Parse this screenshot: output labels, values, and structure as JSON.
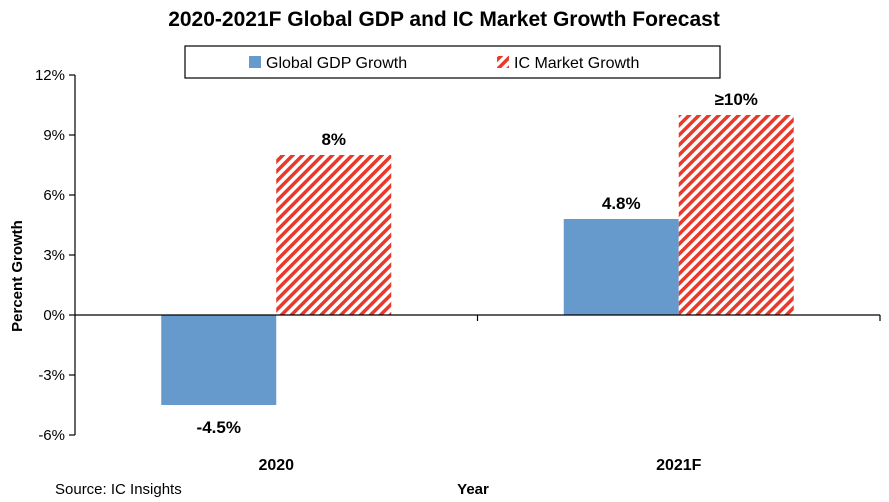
{
  "chart_data": {
    "type": "bar",
    "title": "2020-2021F Global GDP and IC Market Growth Forecast",
    "xlabel": "Year",
    "ylabel": "Percent Growth",
    "categories": [
      "2020",
      "2021F"
    ],
    "series": [
      {
        "name": "Global GDP Growth",
        "values": [
          -4.5,
          4.8
        ],
        "labels": [
          "-4.5%",
          "4.8%"
        ],
        "color": "#6699cc",
        "pattern": "solid"
      },
      {
        "name": "IC Market Growth",
        "values": [
          8,
          10
        ],
        "labels": [
          "8%",
          "≥10%"
        ],
        "color": "#e8392a",
        "pattern": "diagonal-hatch"
      }
    ],
    "ylim": [
      -6,
      12
    ],
    "yticks": [
      -6,
      -3,
      0,
      3,
      6,
      9,
      12
    ],
    "ytick_labels": [
      "-6%",
      "-3%",
      "0%",
      "3%",
      "6%",
      "9%",
      "12%"
    ],
    "legend_position": "top",
    "grid": false
  },
  "source": "Source: IC Insights"
}
